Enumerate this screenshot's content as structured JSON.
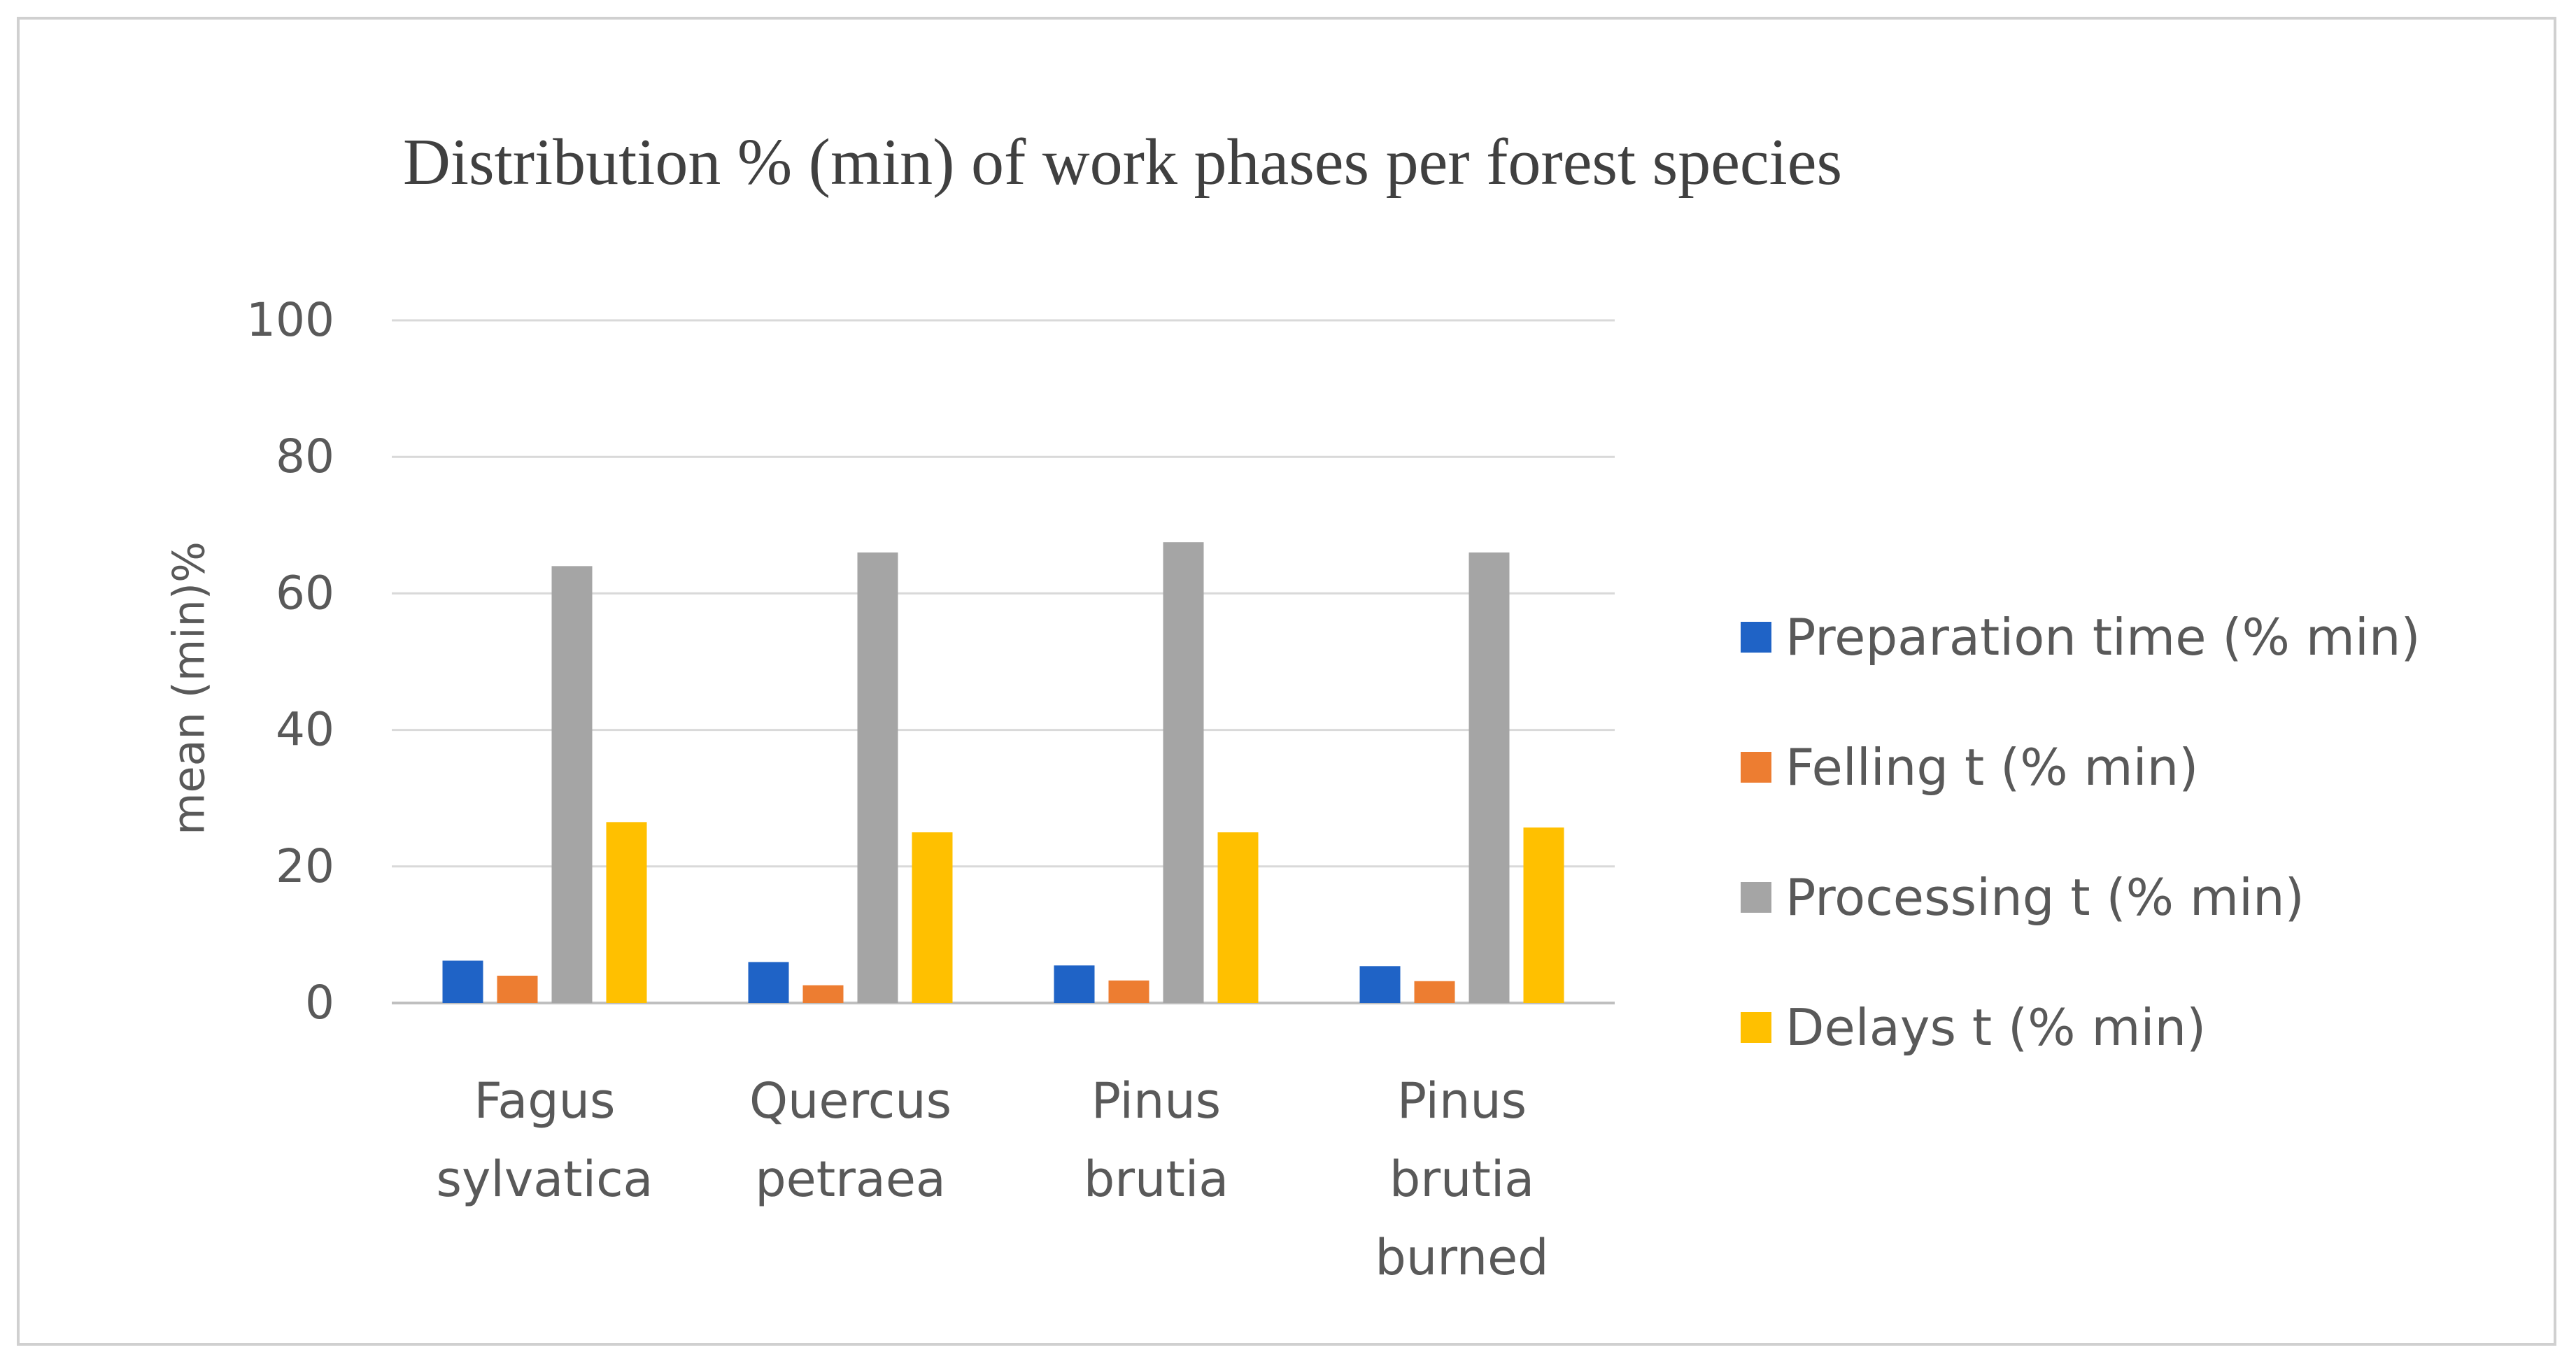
{
  "chart_data": {
    "type": "bar",
    "title": "Distribution  % (min)  of work phases per forest species",
    "ylabel": "mean (min)%",
    "xlabel": "",
    "ylim": [
      0,
      100
    ],
    "yticks": [
      0,
      20,
      40,
      60,
      80,
      100
    ],
    "grid": true,
    "legend_position": "right",
    "categories": [
      [
        "Fagus",
        "sylvatica"
      ],
      [
        "Quercus",
        "petraea"
      ],
      [
        "Pinus",
        "brutia"
      ],
      [
        "Pinus",
        "brutia",
        "burned"
      ]
    ],
    "series": [
      {
        "name": "Preparation time (% min)",
        "color": "#1f63c6",
        "values": [
          6.2,
          6.0,
          5.5,
          5.4
        ]
      },
      {
        "name": "Felling t (% min)",
        "color": "#ed7d31",
        "values": [
          4.0,
          2.6,
          3.3,
          3.2
        ]
      },
      {
        "name": "Processing t (% min)",
        "color": "#a5a5a5",
        "values": [
          64.0,
          66.0,
          67.5,
          66.0
        ]
      },
      {
        "name": "Delays t (% min)",
        "color": "#ffc000",
        "values": [
          26.5,
          25.0,
          25.0,
          25.7
        ]
      }
    ]
  }
}
